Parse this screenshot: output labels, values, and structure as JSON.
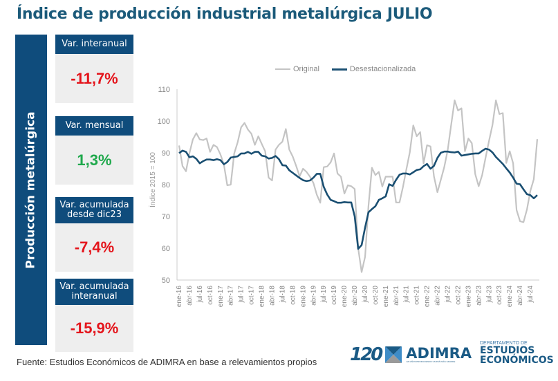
{
  "title": "Índice de producción industrial metalúrgica JULIO",
  "side_label": "Producción metalúrgica",
  "cards": [
    {
      "label": "Var. interanual",
      "value": "-11,7%",
      "sign": "neg"
    },
    {
      "label": "Var. mensual",
      "value": "1,3%",
      "sign": "pos"
    },
    {
      "label": "Var. acumulada desde dic23",
      "value": "-7,4%",
      "sign": "neg"
    },
    {
      "label": "Var. acumulada interanual",
      "value": "-15,9%",
      "sign": "neg"
    }
  ],
  "colors": {
    "primary": "#0f4c7c",
    "negative": "#e4141b",
    "positive": "#1ea84b",
    "original_line": "#c4c4c4",
    "seasonal_line": "#1a4f72"
  },
  "source": "Fuente: Estudios Económicos de ADIMRA en base a relevamientos propios",
  "logos": {
    "anniversary": "120",
    "brand": "ADIMRA",
    "brand_tagline": "120 AÑOS PRODUCIENDO UN PAÍS MÁS GRANDE",
    "dept_small": "DEPARTAMENTO DE",
    "dept_line1": "ESTUDIOS",
    "dept_line2": "ECONÓMICOS"
  },
  "chart_data": {
    "type": "line",
    "title": "",
    "xlabel": "",
    "ylabel": "Índice 2015 = 100",
    "ylim": [
      50,
      110
    ],
    "yticks": [
      50,
      60,
      70,
      80,
      90,
      100,
      110
    ],
    "grid": false,
    "legend_position": "top",
    "xtick_labels": [
      "ene-16",
      "abr-16",
      "jul-16",
      "oct-16",
      "ene-17",
      "abr-17",
      "jul-17",
      "oct-17",
      "ene-18",
      "abr-18",
      "jul-18",
      "oct-18",
      "ene-19",
      "abr-19",
      "jul-19",
      "oct-19",
      "ene-20",
      "abr-20",
      "jul-20",
      "oct-20",
      "ene-21",
      "abr-21",
      "jul-21",
      "oct-21",
      "ene-22",
      "abr-22",
      "jul-22",
      "oct-22",
      "ene-23",
      "abr-23",
      "jul-23",
      "oct-23",
      "ene-24",
      "abr-24",
      "jul-24"
    ],
    "x_start": "ene-16",
    "x_end": "jul-24",
    "series": [
      {
        "name": "Original",
        "values": [
          92.3,
          85.8,
          84.2,
          89.8,
          94.2,
          96.2,
          94.2,
          94.0,
          94.5,
          90.3,
          92.5,
          91.8,
          89.5,
          86.3,
          79.8,
          80.0,
          89.8,
          93.3,
          98.0,
          99.4,
          97.3,
          96.0,
          92.5,
          95.2,
          92.8,
          90.5,
          82.2,
          81.3,
          91.0,
          92.5,
          93.5,
          97.5,
          91.0,
          88.8,
          85.9,
          82.6,
          85.0,
          84.0,
          82.5,
          80.5,
          76.8,
          74.3,
          85.5,
          85.7,
          87.0,
          89.8,
          83.5,
          82.5,
          77.2,
          79.8,
          79.5,
          78.6,
          60.0,
          52.5,
          57.3,
          73.3,
          85.3,
          83.0,
          84.0,
          79.4,
          82.5,
          82.5,
          82.5,
          74.4,
          74.4,
          79.3,
          84.8,
          90.2,
          98.6,
          95.2,
          96.5,
          86.7,
          92.4,
          92.0,
          82.6,
          77.6,
          81.5,
          85.5,
          90.9,
          98.8,
          106.5,
          103.3,
          104.0,
          90.5,
          94.5,
          93.0,
          83.3,
          79.5,
          83.0,
          88.5,
          93.8,
          98.8,
          106.5,
          102.2,
          102.5,
          86.8,
          90.5,
          86.7,
          72.0,
          68.5,
          68.2,
          72.2,
          78.0,
          81.7,
          94.3
        ]
      },
      {
        "name": "Desestacionalizada",
        "values": [
          89.9,
          90.7,
          90.3,
          88.6,
          88.9,
          88.1,
          86.7,
          87.4,
          87.9,
          87.9,
          87.7,
          88.0,
          87.7,
          86.4,
          87.1,
          88.5,
          88.7,
          88.9,
          89.8,
          89.8,
          90.3,
          89.7,
          90.3,
          90.3,
          89.1,
          88.9,
          88.2,
          88.4,
          89.0,
          88.0,
          86.1,
          86.0,
          84.5,
          83.7,
          82.9,
          82.1,
          81.4,
          81.1,
          81.3,
          82.2,
          83.4,
          83.4,
          79.3,
          76.9,
          75.2,
          74.8,
          74.3,
          74.3,
          74.5,
          74.4,
          74.4,
          70.0,
          59.8,
          61.0,
          66.5,
          71.3,
          72.3,
          73.2,
          75.2,
          75.7,
          76.3,
          80.1,
          79.6,
          81.5,
          83.1,
          83.5,
          83.5,
          83.2,
          83.9,
          84.6,
          84.8,
          85.8,
          86.5,
          85.0,
          85.9,
          88.4,
          90.0,
          90.4,
          90.4,
          90.2,
          90.1,
          90.4,
          89.1,
          89.3,
          89.5,
          89.7,
          89.8,
          89.8,
          90.6,
          91.3,
          91.0,
          90.1,
          88.7,
          87.6,
          86.5,
          85.1,
          83.8,
          82.2,
          80.3,
          80.1,
          78.5,
          77.0,
          76.7,
          75.7,
          76.7
        ]
      }
    ]
  }
}
